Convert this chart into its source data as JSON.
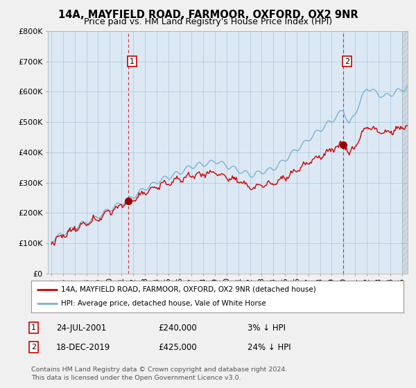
{
  "title": "14A, MAYFIELD ROAD, FARMOOR, OXFORD, OX2 9NR",
  "subtitle": "Price paid vs. HM Land Registry's House Price Index (HPI)",
  "ylim": [
    0,
    800000
  ],
  "yticks": [
    0,
    100000,
    200000,
    300000,
    400000,
    500000,
    600000,
    700000,
    800000
  ],
  "ytick_labels": [
    "£0",
    "£100K",
    "£200K",
    "£300K",
    "£400K",
    "£500K",
    "£600K",
    "£700K",
    "£800K"
  ],
  "sale1_date": 2001.558,
  "sale1_price": 240000,
  "sale2_date": 2019.962,
  "sale2_price": 425000,
  "line_color_property": "#cc0000",
  "line_color_hpi": "#7ab0d4",
  "background_color": "#f0f0f0",
  "plot_bg_color": "#dce9f5",
  "legend_label_property": "14A, MAYFIELD ROAD, FARMOOR, OXFORD, OX2 9NR (detached house)",
  "legend_label_hpi": "HPI: Average price, detached house, Vale of White Horse",
  "footer": "Contains HM Land Registry data © Crown copyright and database right 2024.\nThis data is licensed under the Open Government Licence v3.0.",
  "title_fontsize": 10.5,
  "subtitle_fontsize": 9,
  "tick_fontsize": 8,
  "xlim_start": 1994.7,
  "xlim_end": 2025.5
}
